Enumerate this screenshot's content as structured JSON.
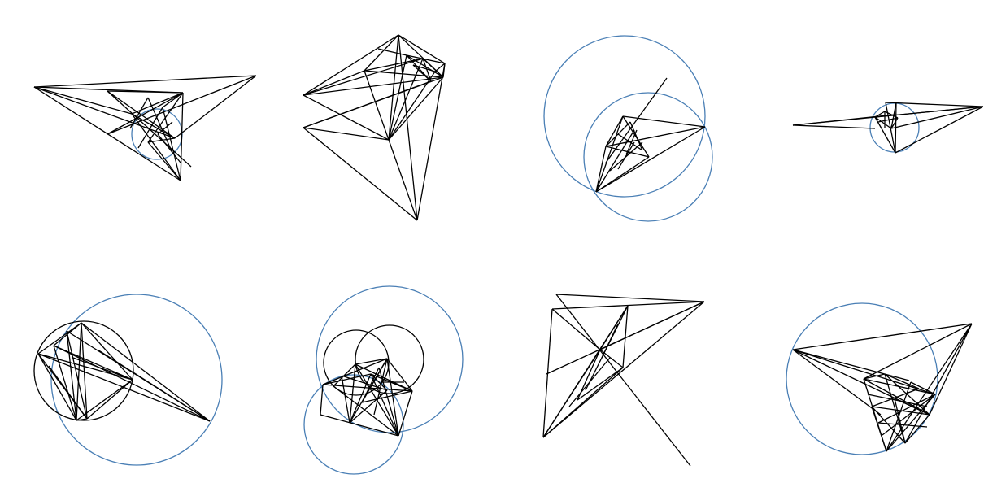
{
  "colors": {
    "background": "#ffffff",
    "line": "#000000",
    "circle_blue": "#4a7fb5",
    "circle_black": "#000000"
  },
  "panels": [
    {
      "name": "panel-1",
      "line_count": 26,
      "circle_count": 1
    },
    {
      "name": "panel-2",
      "line_count": 33,
      "circle_count": 0
    },
    {
      "name": "panel-3",
      "line_count": 18,
      "circle_count": 2
    },
    {
      "name": "panel-4",
      "line_count": 18,
      "circle_count": 1
    },
    {
      "name": "panel-5",
      "line_count": 22,
      "circle_count": 2
    },
    {
      "name": "panel-6",
      "line_count": 28,
      "circle_count": 4
    },
    {
      "name": "panel-7",
      "line_count": 19,
      "circle_count": 0
    },
    {
      "name": "panel-8",
      "line_count": 31,
      "circle_count": 1
    }
  ]
}
